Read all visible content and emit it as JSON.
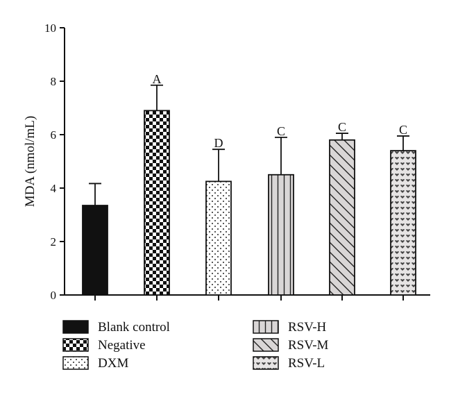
{
  "chart_data": {
    "type": "bar",
    "title": "",
    "xlabel": "",
    "ylabel": "MDA (nmol/mL)",
    "ylim": [
      0,
      10
    ],
    "yticks": [
      0,
      2,
      4,
      6,
      8,
      10
    ],
    "grid": false,
    "legend_position": "bottom",
    "categories": [
      "Blank control",
      "Negative",
      "DXM",
      "RSV-H",
      "RSV-M",
      "RSV-L"
    ],
    "values": [
      3.35,
      6.9,
      4.25,
      4.5,
      5.8,
      5.4
    ],
    "error": [
      0.82,
      0.95,
      1.2,
      1.4,
      0.25,
      0.55
    ],
    "annotations": [
      "",
      "A",
      "D",
      "C",
      "C",
      "C"
    ],
    "fill_patterns": [
      "solid-black",
      "checkerboard",
      "dots",
      "vertical-lines",
      "diagonal-lines",
      "heart-pattern"
    ]
  }
}
